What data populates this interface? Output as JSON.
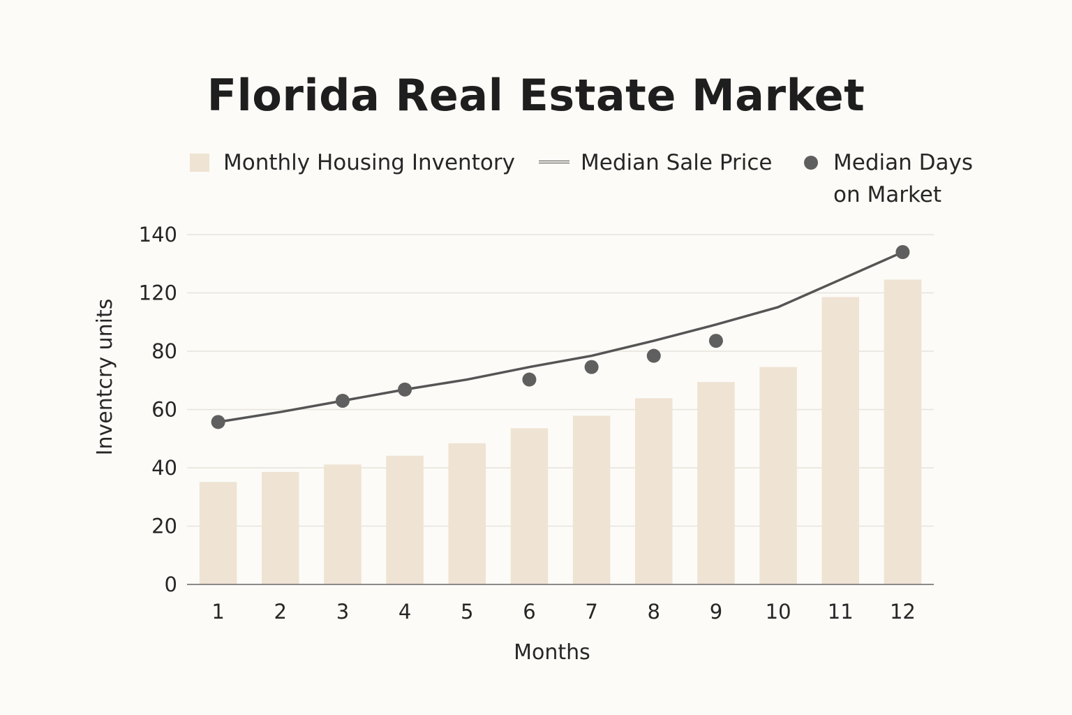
{
  "chart_data": {
    "type": "bar",
    "title": "Florida Real Estate Market",
    "xlabel": "Months",
    "ylabel": "Inventcry units",
    "ylim": [
      0,
      140
    ],
    "yticks": [
      "0",
      "20",
      "40",
      "60",
      "80",
      "120",
      "140"
    ],
    "categories": [
      "1",
      "2",
      "3",
      "4",
      "5",
      "6",
      "7",
      "8",
      "9",
      "10",
      "11",
      "12"
    ],
    "grid": true,
    "legend_position": "top",
    "legend": [
      {
        "label": "Monthly Housing Inventory",
        "marker": "bar"
      },
      {
        "label": "Median Sale Price",
        "marker": "line"
      },
      {
        "label": "Median Days on Market",
        "marker": "dot",
        "lines": [
          "Median Days",
          "on Market"
        ]
      }
    ],
    "series": [
      {
        "name": "Monthly Housing Inventory",
        "type": "bar",
        "color": "#efe3d3",
        "values": [
          41,
          45,
          48,
          51.5,
          56.5,
          62.5,
          67.5,
          74.5,
          81,
          87,
          115,
          122
        ]
      },
      {
        "name": "Median Sale Price",
        "type": "line",
        "color": "#555555",
        "values": [
          65,
          69,
          73.5,
          78,
          82,
          87,
          91.5,
          97.5,
          104,
          111,
          122,
          133
        ]
      },
      {
        "name": "Median Days on Market",
        "type": "scatter",
        "color": "#5f5f5f",
        "x": [
          "1",
          "3",
          "4",
          "6",
          "7",
          "8",
          "9",
          "12"
        ],
        "values": [
          65,
          73.5,
          78,
          82,
          87,
          91.5,
          97.5,
          133
        ]
      }
    ]
  }
}
